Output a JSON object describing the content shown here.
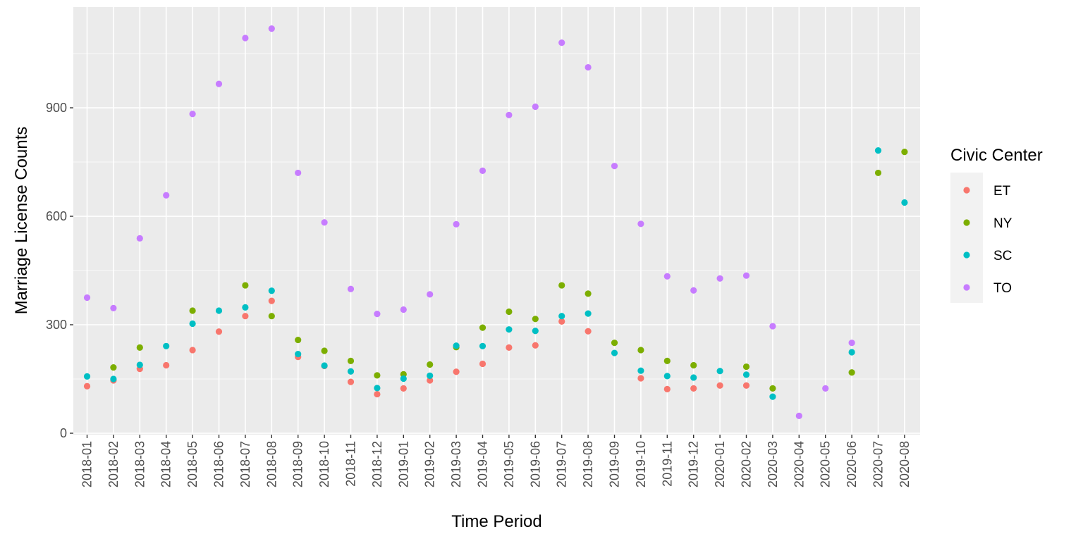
{
  "chart_data": {
    "type": "scatter",
    "title": "",
    "xlabel": "Time Period",
    "ylabel": "Marriage License Counts",
    "ylim": [
      0,
      1160
    ],
    "yticks": [
      0,
      300,
      600,
      900
    ],
    "grid": true,
    "legend": {
      "title": "Civic Center",
      "placement": "right"
    },
    "categories": [
      "2018-01",
      "2018-02",
      "2018-03",
      "2018-04",
      "2018-05",
      "2018-06",
      "2018-07",
      "2018-08",
      "2018-09",
      "2018-10",
      "2018-11",
      "2018-12",
      "2019-01",
      "2019-02",
      "2019-03",
      "2019-04",
      "2019-05",
      "2019-06",
      "2019-07",
      "2019-08",
      "2019-09",
      "2019-10",
      "2019-11",
      "2019-12",
      "2020-01",
      "2020-02",
      "2020-03",
      "2020-04",
      "2020-05",
      "2020-06",
      "2020-07",
      "2020-08"
    ],
    "series": [
      {
        "name": "ET",
        "color": "#F8766D",
        "values": [
          130,
          146,
          178,
          188,
          230,
          281,
          324,
          366,
          211,
          186,
          142,
          108,
          124,
          146,
          170,
          192,
          237,
          243,
          309,
          282,
          null,
          152,
          122,
          124,
          132,
          132,
          null,
          null,
          null,
          null,
          null,
          null
        ]
      },
      {
        "name": "NY",
        "color": "#7CAE00",
        "values": [
          null,
          182,
          237,
          null,
          339,
          null,
          409,
          324,
          258,
          228,
          200,
          160,
          163,
          190,
          238,
          292,
          336,
          316,
          409,
          386,
          250,
          230,
          200,
          188,
          null,
          184,
          124,
          null,
          null,
          168,
          720,
          778
        ]
      },
      {
        "name": "SC",
        "color": "#00BFC4",
        "values": [
          157,
          150,
          189,
          241,
          303,
          339,
          348,
          394,
          219,
          187,
          171,
          125,
          151,
          159,
          242,
          241,
          287,
          283,
          324,
          331,
          222,
          173,
          158,
          154,
          172,
          162,
          101,
          null,
          null,
          224,
          782,
          638
        ]
      },
      {
        "name": "TO",
        "color": "#C77CFF",
        "values": [
          375,
          346,
          539,
          658,
          883,
          966,
          1093,
          1119,
          720,
          583,
          399,
          330,
          342,
          384,
          578,
          726,
          880,
          903,
          1080,
          1012,
          739,
          579,
          434,
          395,
          428,
          436,
          296,
          48,
          124,
          250,
          null,
          null
        ]
      }
    ]
  }
}
